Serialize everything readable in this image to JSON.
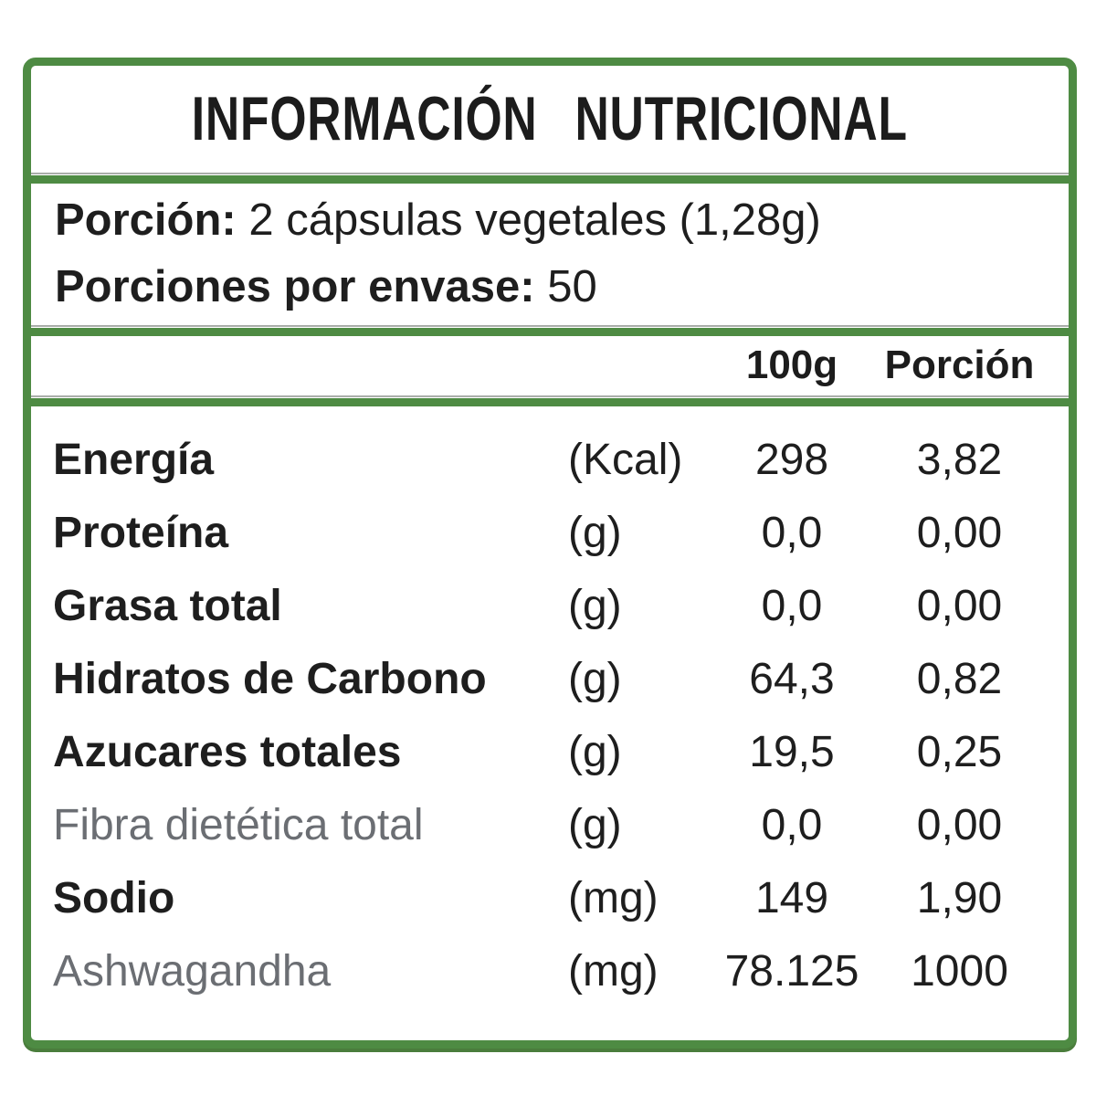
{
  "label": {
    "title": "INFORMACIÓN NUTRICIONAL",
    "serving": {
      "line1_label": "Porción:",
      "line1_value": " 2 cápsulas vegetales (1,28g)",
      "line2_label": "Porciones por envase:",
      "line2_value": " 50"
    },
    "columns": {
      "per_100g": "100g",
      "per_portion": "Porción"
    },
    "rows": [
      {
        "name": "Energía",
        "unit": "(Kcal)",
        "per100g": "298",
        "portion": "3,82",
        "muted": false
      },
      {
        "name": "Proteína",
        "unit": "(g)",
        "per100g": "0,0",
        "portion": "0,00",
        "muted": false
      },
      {
        "name": "Grasa total",
        "unit": "(g)",
        "per100g": "0,0",
        "portion": "0,00",
        "muted": false
      },
      {
        "name": "Hidratos de Carbono",
        "unit": "(g)",
        "per100g": "64,3",
        "portion": "0,82",
        "muted": false
      },
      {
        "name": "Azucares totales",
        "unit": "(g)",
        "per100g": "19,5",
        "portion": "0,25",
        "muted": false
      },
      {
        "name": "Fibra dietética total",
        "unit": "(g)",
        "per100g": "0,0",
        "portion": "0,00",
        "muted": true
      },
      {
        "name": "Sodio",
        "unit": "(mg)",
        "per100g": "149",
        "portion": "1,90",
        "muted": false
      },
      {
        "name": "Ashwagandha",
        "unit": "(mg)",
        "per100g": "78.125",
        "portion": "1000",
        "muted": true
      }
    ],
    "colors": {
      "border_green": "#4e8b43",
      "border_green_shadow": "#4a7d3c",
      "text_black": "#1e1e1e",
      "text_muted": "#6b6e73",
      "background": "#ffffff"
    }
  }
}
